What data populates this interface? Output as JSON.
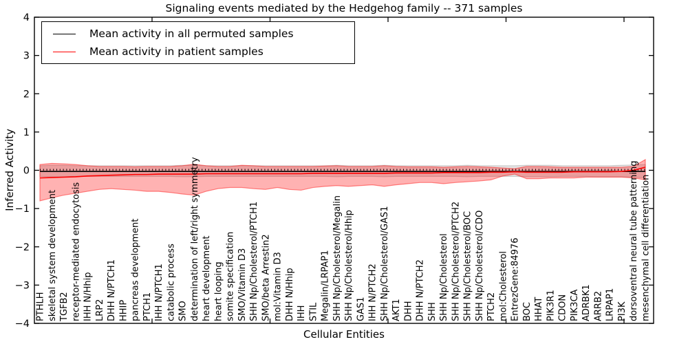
{
  "figure": {
    "title": "Signaling events mediated by the Hedgehog family -- 371 samples",
    "xlabel": "Cellular Entities",
    "ylabel": "Inferred Activity"
  },
  "legend": {
    "items": [
      {
        "label": "Mean activity in all permuted samples",
        "color": "#000000"
      },
      {
        "label": "Mean activity in patient samples",
        "color": "#ff0000"
      }
    ]
  },
  "chart_data": {
    "type": "line",
    "title": "Signaling events mediated by the Hedgehog family -- 371 samples",
    "xlabel": "Cellular Entities",
    "ylabel": "Inferred Activity",
    "ylim": [
      -4,
      4
    ],
    "yticks": [
      -4,
      -3,
      -2,
      -1,
      0,
      1,
      2,
      3,
      4
    ],
    "ytick_labels": [
      "−4",
      "−3",
      "−2",
      "−1",
      "0",
      "1",
      "2",
      "3",
      "4"
    ],
    "grid": false,
    "legend_position": "upper left",
    "zero_line": {
      "y": 0,
      "style": "dotted",
      "color": "#000000"
    },
    "categories": [
      "PTHLH",
      "skeletal system development",
      "TGFB2",
      "receptor-mediated endocytosis",
      "IHH N/Hhip",
      "LRP2",
      "DHH N/PTCH1",
      "HHIP",
      "pancreas development",
      "PTCH1",
      "IHH N/PTCH1",
      "catabolic process",
      "SMO",
      "determination of left/right symmetry",
      "heart development",
      "heart looping",
      "somite specification",
      "SMO/Vitamin D3",
      "SHH Np/Cholesterol/PTCH1",
      "SMO/beta Arrestin2",
      "mol:Vitamin D3",
      "DHH N/Hhip",
      "IHH",
      "STIL",
      "Megalin/LRPAP1",
      "SHH Np/Cholesterol/Megalin",
      "SHH Np/Cholesterol/Hhip",
      "GAS1",
      "IHH N/PTCH2",
      "SHH Np/Cholesterol/GAS1",
      "AKT1",
      "DHH",
      "DHH N/PTCH2",
      "SHH",
      "SHH Np/Cholesterol",
      "SHH Np/Cholesterol/PTCH2",
      "SHH Np/Cholesterol/BOC",
      "SHH Np/Cholesterol/CDO",
      "PTCH2",
      "mol:Cholesterol",
      "EntrezGene:84976",
      "BOC",
      "HHAT",
      "PIK3R1",
      "CDON",
      "PIK3CA",
      "ADRBK1",
      "ARRB2",
      "LRPAP1",
      "PI3K",
      "dorsoventral neural tube patterning",
      "mesenchymal cell differentiation"
    ],
    "series": [
      {
        "name": "Mean activity in all permuted samples",
        "color": "#000000",
        "values": [
          -0.03,
          -0.03,
          -0.03,
          -0.03,
          -0.03,
          -0.03,
          -0.03,
          -0.03,
          -0.03,
          -0.03,
          -0.03,
          -0.03,
          -0.03,
          -0.03,
          -0.03,
          -0.03,
          -0.03,
          -0.03,
          -0.03,
          -0.03,
          -0.03,
          -0.03,
          -0.03,
          -0.03,
          -0.03,
          -0.03,
          -0.03,
          -0.03,
          -0.03,
          -0.03,
          -0.03,
          -0.03,
          -0.03,
          -0.03,
          -0.03,
          -0.03,
          -0.03,
          -0.03,
          -0.03,
          -0.03,
          -0.03,
          -0.03,
          -0.03,
          -0.03,
          -0.03,
          -0.03,
          -0.03,
          -0.03,
          -0.03,
          -0.03,
          -0.03,
          -0.03
        ]
      },
      {
        "name": "Mean activity in patient samples",
        "color": "#ff0000",
        "values": [
          -0.2,
          -0.19,
          -0.18,
          -0.17,
          -0.15,
          -0.14,
          -0.13,
          -0.12,
          -0.11,
          -0.11,
          -0.1,
          -0.1,
          -0.1,
          -0.1,
          -0.09,
          -0.09,
          -0.09,
          -0.09,
          -0.09,
          -0.09,
          -0.09,
          -0.09,
          -0.09,
          -0.08,
          -0.08,
          -0.08,
          -0.08,
          -0.08,
          -0.08,
          -0.08,
          -0.07,
          -0.07,
          -0.07,
          -0.07,
          -0.06,
          -0.06,
          -0.06,
          -0.06,
          -0.05,
          -0.05,
          -0.04,
          -0.05,
          -0.05,
          -0.05,
          -0.05,
          -0.04,
          -0.04,
          -0.04,
          -0.04,
          -0.03,
          0.0,
          0.08
        ]
      }
    ],
    "bands": [
      {
        "name": "permuted samples spread",
        "fill": "rgba(0,0,0,0.11)",
        "edge": "rgba(0,0,0,0.16)",
        "upper": [
          0.12,
          0.13,
          0.13,
          0.12,
          0.12,
          0.12,
          0.12,
          0.12,
          0.12,
          0.12,
          0.12,
          0.12,
          0.13,
          0.13,
          0.12,
          0.12,
          0.12,
          0.12,
          0.12,
          0.12,
          0.12,
          0.12,
          0.12,
          0.12,
          0.12,
          0.13,
          0.12,
          0.12,
          0.12,
          0.13,
          0.12,
          0.12,
          0.12,
          0.12,
          0.12,
          0.12,
          0.13,
          0.12,
          0.12,
          0.12,
          0.12,
          0.13,
          0.13,
          0.13,
          0.12,
          0.12,
          0.12,
          0.12,
          0.12,
          0.13,
          0.14,
          0.15
        ],
        "lower": [
          -0.16,
          -0.17,
          -0.17,
          -0.16,
          -0.16,
          -0.16,
          -0.16,
          -0.16,
          -0.16,
          -0.16,
          -0.16,
          -0.16,
          -0.17,
          -0.17,
          -0.16,
          -0.16,
          -0.16,
          -0.16,
          -0.16,
          -0.16,
          -0.16,
          -0.16,
          -0.16,
          -0.16,
          -0.16,
          -0.17,
          -0.16,
          -0.16,
          -0.16,
          -0.17,
          -0.16,
          -0.16,
          -0.16,
          -0.16,
          -0.16,
          -0.16,
          -0.17,
          -0.16,
          -0.16,
          -0.16,
          -0.16,
          -0.17,
          -0.17,
          -0.17,
          -0.16,
          -0.16,
          -0.16,
          -0.17,
          -0.17,
          -0.17,
          -0.18,
          -0.2
        ]
      },
      {
        "name": "patient samples spread",
        "fill": "rgba(255,0,0,0.30)",
        "edge": "rgba(255,0,0,0.45)",
        "upper": [
          0.15,
          0.18,
          0.17,
          0.15,
          0.12,
          0.1,
          0.1,
          0.1,
          0.09,
          0.1,
          0.1,
          0.1,
          0.12,
          0.16,
          0.12,
          0.1,
          0.1,
          0.13,
          0.12,
          0.1,
          0.1,
          0.1,
          0.1,
          0.1,
          0.11,
          0.12,
          0.1,
          0.1,
          0.1,
          0.12,
          0.1,
          0.09,
          0.09,
          0.09,
          0.08,
          0.09,
          0.1,
          0.09,
          0.08,
          0.06,
          0.04,
          0.1,
          0.1,
          0.09,
          0.08,
          0.08,
          0.08,
          0.08,
          0.08,
          0.08,
          0.1,
          0.28
        ],
        "lower": [
          -0.8,
          -0.72,
          -0.65,
          -0.6,
          -0.55,
          -0.5,
          -0.48,
          -0.5,
          -0.52,
          -0.55,
          -0.55,
          -0.58,
          -0.62,
          -0.65,
          -0.55,
          -0.48,
          -0.45,
          -0.45,
          -0.48,
          -0.5,
          -0.45,
          -0.5,
          -0.52,
          -0.45,
          -0.42,
          -0.4,
          -0.42,
          -0.4,
          -0.38,
          -0.42,
          -0.38,
          -0.35,
          -0.32,
          -0.32,
          -0.35,
          -0.32,
          -0.3,
          -0.28,
          -0.25,
          -0.15,
          -0.1,
          -0.22,
          -0.22,
          -0.2,
          -0.2,
          -0.2,
          -0.18,
          -0.18,
          -0.18,
          -0.18,
          -0.2,
          -0.25
        ]
      }
    ]
  }
}
